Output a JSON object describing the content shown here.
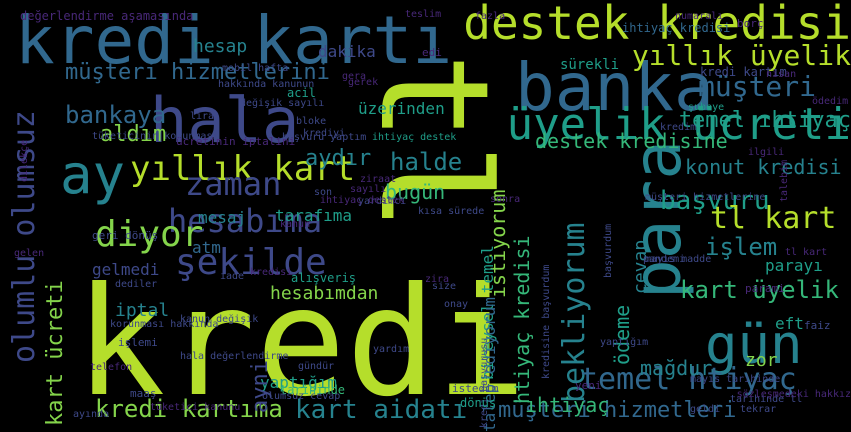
{
  "palette": {
    "background": "#000000",
    "lime": "#b5de2b",
    "light_green": "#84d44b",
    "green": "#35b779",
    "teal": "#1f9e89",
    "blue_teal": "#26828e",
    "steel": "#31688e",
    "indigo": "#3e4989",
    "purple": "#482878"
  },
  "words": [
    {
      "text": "kredi",
      "color": "lime",
      "rot": 0
    },
    {
      "text": "tl",
      "color": "lime",
      "rot": 90
    },
    {
      "text": "kredi kartı",
      "color": "steel",
      "rot": 0
    },
    {
      "text": "destek kredisi",
      "color": "lime",
      "rot": 0
    },
    {
      "text": "banka",
      "color": "steel",
      "rot": 0
    },
    {
      "text": "para",
      "color": "blue_teal",
      "rot": 270
    },
    {
      "text": "hala",
      "color": "indigo",
      "rot": 0
    },
    {
      "text": "ay",
      "color": "blue_teal",
      "rot": 0
    },
    {
      "text": "yıllık kart",
      "color": "lime",
      "rot": 0
    },
    {
      "text": "üyelik ücreti",
      "color": "teal",
      "rot": 0
    },
    {
      "text": "olumlu olumsuz",
      "color": "indigo",
      "rot": 270
    },
    {
      "text": "gün",
      "color": "blue_teal",
      "rot": 0
    },
    {
      "text": "şekilde",
      "color": "indigo",
      "rot": 0
    },
    {
      "text": "zaman",
      "color": "indigo",
      "rot": 0
    },
    {
      "text": "hesabıma",
      "color": "indigo",
      "rot": 0
    },
    {
      "text": "diyor",
      "color": "light_green",
      "rot": 0
    },
    {
      "text": "bekliyorum",
      "color": "blue_teal",
      "rot": 270
    },
    {
      "text": "temel htiyaç",
      "color": "steel",
      "rot": 0
    },
    {
      "text": "müşteri hizmetlerini",
      "color": "steel",
      "rot": 0
    },
    {
      "text": "yıllık üyelik",
      "color": "lime",
      "rot": 0
    },
    {
      "text": "müşteri",
      "color": "steel",
      "rot": 0
    },
    {
      "text": "temel ıhtiyaç",
      "color": "teal",
      "rot": 0
    },
    {
      "text": "destek kredisine",
      "color": "green",
      "rot": 0
    },
    {
      "text": "konut kredisi",
      "color": "blue_teal",
      "rot": 0
    },
    {
      "text": "başvuru",
      "color": "teal",
      "rot": 0
    },
    {
      "text": "tl kart",
      "color": "lime",
      "rot": 0
    },
    {
      "text": "işlem",
      "color": "blue_teal",
      "rot": 0
    },
    {
      "text": "kart üyelik",
      "color": "green",
      "rot": 0
    },
    {
      "text": "kart ücreti",
      "color": "light_green",
      "rot": 270
    },
    {
      "text": "kredi kartıma",
      "color": "light_green",
      "rot": 0
    },
    {
      "text": "kart aidatı",
      "color": "blue_teal",
      "rot": 0
    },
    {
      "text": "müşteri hizmetleri",
      "color": "steel",
      "rot": 0
    },
    {
      "text": "htiyaç kredisi",
      "color": "green",
      "rot": 270
    },
    {
      "text": "istiyorum",
      "color": "light_green",
      "rot": 270
    },
    {
      "text": "bireysel temel",
      "color": "teal",
      "rot": 270
    },
    {
      "text": "talep ediyorum",
      "color": "steel",
      "rot": 270
    },
    {
      "text": "cevap",
      "color": "blue_teal",
      "rot": 270
    },
    {
      "text": "ödeme",
      "color": "teal",
      "rot": 270
    },
    {
      "text": "mağdur",
      "color": "blue_teal",
      "rot": 0
    },
    {
      "text": "bankaya",
      "color": "steel",
      "rot": 0
    },
    {
      "text": "aldım",
      "color": "light_green",
      "rot": 0
    },
    {
      "text": "aydır",
      "color": "blue_teal",
      "rot": 0
    },
    {
      "text": "halde",
      "color": "blue_teal",
      "rot": 0
    },
    {
      "text": "bugün",
      "color": "green",
      "rot": 0
    },
    {
      "text": "hesabımdan",
      "color": "light_green",
      "rot": 0
    },
    {
      "text": "ıhtiyaç",
      "color": "green",
      "rot": 0
    },
    {
      "text": "yaptığım",
      "color": "teal",
      "rot": 0
    },
    {
      "text": "hesap",
      "color": "blue_teal",
      "rot": 0
    },
    {
      "text": "dakika",
      "color": "indigo",
      "rot": 0
    },
    {
      "text": "üzerinden",
      "color": "teal",
      "rot": 0
    },
    {
      "text": "sürekli",
      "color": "teal",
      "rot": 0
    },
    {
      "text": "mesaj",
      "color": "blue_teal",
      "rot": 0
    },
    {
      "text": "tarafıma",
      "color": "teal",
      "rot": 0
    },
    {
      "text": "iptal",
      "color": "blue_teal",
      "rot": 0
    },
    {
      "text": "atm",
      "color": "steel",
      "rot": 0
    },
    {
      "text": "gelmedi",
      "color": "indigo",
      "rot": 0
    },
    {
      "text": "ayni",
      "color": "indigo",
      "rot": 270
    },
    {
      "text": "parayı",
      "color": "teal",
      "rot": 0
    },
    {
      "text": "eft",
      "color": "teal",
      "rot": 0
    },
    {
      "text": "zor",
      "color": "light_green",
      "rot": 0
    },
    {
      "text": "değerlendirme aşamasında",
      "color": "purple",
      "rot": 0
    },
    {
      "text": "mobil hafta",
      "color": "indigo",
      "rot": 0
    },
    {
      "text": "ihtiyaç kredisi",
      "color": "steel",
      "rot": 0
    },
    {
      "text": "kredi kartım",
      "color": "indigo",
      "rot": 0
    },
    {
      "text": "hakkında kanunun",
      "color": "indigo",
      "rot": 0
    },
    {
      "text": "değişik sayılı",
      "color": "indigo",
      "rot": 0
    },
    {
      "text": "tüketicinin korunması",
      "color": "indigo",
      "rot": 0
    },
    {
      "text": "başvuru yaptım",
      "color": "indigo",
      "rot": 0
    },
    {
      "text": "ihtiyaç destek",
      "color": "teal",
      "rot": 0
    },
    {
      "text": "ücretinin iptalini",
      "color": "purple",
      "rot": 0
    },
    {
      "text": "yardımcı",
      "color": "indigo",
      "rot": 0
    },
    {
      "text": "geri dönüş",
      "color": "indigo",
      "rot": 0
    },
    {
      "text": "alışveriş",
      "color": "teal",
      "rot": 0
    },
    {
      "text": "kanun değişik",
      "color": "indigo",
      "rot": 0
    },
    {
      "text": "korunması hakkında",
      "color": "indigo",
      "rot": 0
    },
    {
      "text": "tarihinde",
      "color": "green",
      "rot": 0
    },
    {
      "text": "hala değerlendirme",
      "color": "indigo",
      "rot": 0
    },
    {
      "text": "tarihinde tl",
      "color": "indigo",
      "rot": 0
    },
    {
      "text": "müşteri hizmetlerine",
      "color": "indigo",
      "rot": 0
    },
    {
      "text": "pandemi",
      "color": "indigo",
      "rot": 0
    },
    {
      "text": "kısa sürede",
      "color": "indigo",
      "rot": 0
    },
    {
      "text": "başvurdum",
      "color": "indigo",
      "rot": 270
    },
    {
      "text": "kredi başvurusu",
      "color": "indigo",
      "rot": 270
    },
    {
      "text": "kredisine başvurdum",
      "color": "indigo",
      "rot": 270
    },
    {
      "text": "şubeye",
      "color": "teal",
      "rot": 0
    },
    {
      "text": "kredim",
      "color": "indigo",
      "rot": 0
    },
    {
      "text": "dediler",
      "color": "indigo",
      "rot": 0
    },
    {
      "text": "iade",
      "color": "indigo",
      "rot": 0
    },
    {
      "text": "onay",
      "color": "indigo",
      "rot": 0
    },
    {
      "text": "maaş",
      "color": "indigo",
      "rot": 0
    },
    {
      "text": "işlemi",
      "color": "indigo",
      "rot": 0
    },
    {
      "text": "gündür",
      "color": "indigo",
      "rot": 0
    },
    {
      "text": "olumsuz cevap",
      "color": "indigo",
      "rot": 0
    },
    {
      "text": "ayında",
      "color": "indigo",
      "rot": 0
    },
    {
      "text": "istedim",
      "color": "indigo",
      "rot": 0
    },
    {
      "text": "dönüş",
      "color": "teal",
      "rot": 0
    },
    {
      "text": "mayıs tarihinde",
      "color": "indigo",
      "rot": 0
    },
    {
      "text": "yaptığım",
      "color": "indigo",
      "rot": 0
    },
    {
      "text": "mayıs madde",
      "color": "indigo",
      "rot": 0
    },
    {
      "text": "faiz",
      "color": "indigo",
      "rot": 0
    },
    {
      "text": "geldi",
      "color": "indigo",
      "rot": 0
    },
    {
      "text": "tekrar",
      "color": "indigo",
      "rot": 0
    },
    {
      "text": "acil",
      "color": "teal",
      "rot": 0
    },
    {
      "text": "bloke",
      "color": "indigo",
      "rot": 0
    },
    {
      "text": "krediyi",
      "color": "indigo",
      "rot": 0
    },
    {
      "text": "lira",
      "color": "indigo",
      "rot": 0
    },
    {
      "text": "son",
      "color": "indigo",
      "rot": 0
    },
    {
      "text": "size",
      "color": "indigo",
      "rot": 0
    },
    {
      "text": "yardım",
      "color": "indigo",
      "rot": 0
    },
    {
      "text": "borç",
      "color": "purple",
      "rot": 0
    },
    {
      "text": "nisan",
      "color": "purple",
      "rot": 0
    },
    {
      "text": "ödedim",
      "color": "purple",
      "rot": 0
    },
    {
      "text": "teslim",
      "color": "purple",
      "rot": 0
    },
    {
      "text": "fazla",
      "color": "purple",
      "rot": 0
    },
    {
      "text": "gerek",
      "color": "purple",
      "rot": 0
    },
    {
      "text": "edi",
      "color": "purple",
      "rot": 0
    },
    {
      "text": "gera",
      "color": "purple",
      "rot": 0
    },
    {
      "text": "kredisi",
      "color": "purple",
      "rot": 0
    },
    {
      "text": "gelen",
      "color": "purple",
      "rot": 0
    },
    {
      "text": "sözleşmedeki hakkız",
      "color": "purple",
      "rot": 0
    },
    {
      "text": "telefon",
      "color": "purple",
      "rot": 0
    },
    {
      "text": "tüketici kanunu",
      "color": "purple",
      "rot": 0
    },
    {
      "text": "yeni",
      "color": "purple",
      "rot": 0
    },
    {
      "text": "parami",
      "color": "purple",
      "rot": 0
    },
    {
      "text": "numaralı",
      "color": "purple",
      "rot": 0
    },
    {
      "text": "ilgili",
      "color": "purple",
      "rot": 0
    },
    {
      "text": "tl kart",
      "color": "purple",
      "rot": 0
    },
    {
      "text": "ihtiyaç destek",
      "color": "purple",
      "rot": 0
    },
    {
      "text": "sayılı",
      "color": "purple",
      "rot": 0
    },
    {
      "text": "kanun",
      "color": "purple",
      "rot": 0
    },
    {
      "text": "sonra",
      "color": "purple",
      "rot": 0
    },
    {
      "text": "zira",
      "color": "purple",
      "rot": 0
    },
    {
      "text": "dilekçe",
      "color": "purple",
      "rot": 270
    },
    {
      "text": "ziraat",
      "color": "purple",
      "rot": 0
    },
    {
      "text": "talebim",
      "color": "purple",
      "rot": 270
    }
  ]
}
